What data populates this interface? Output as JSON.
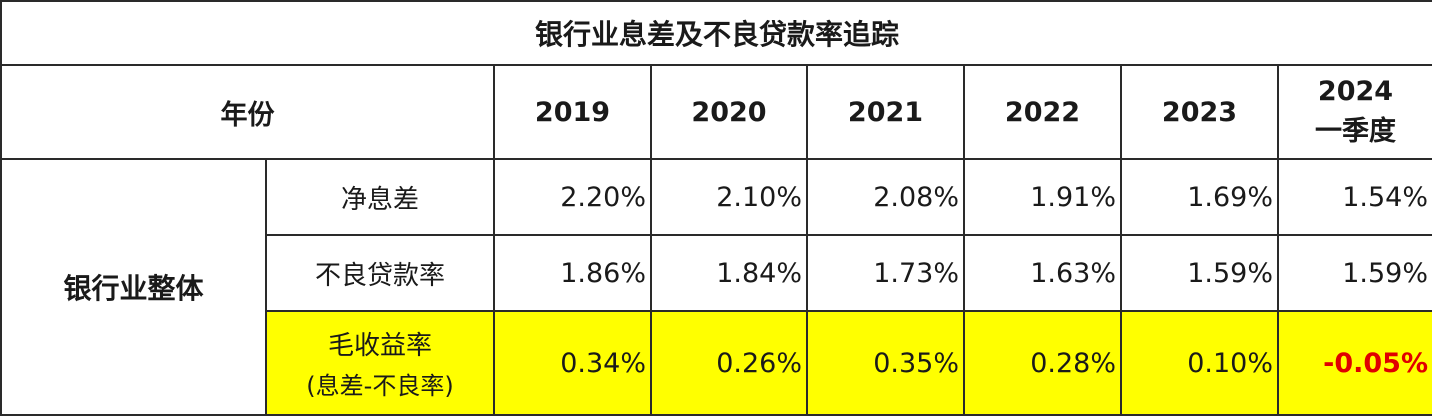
{
  "title": "银行业息差及不良贷款率追踪",
  "header": {
    "year_label": "年份",
    "years": [
      "2019",
      "2020",
      "2021",
      "2022",
      "2023"
    ],
    "last_year": "2024",
    "last_year_sub": "一季度"
  },
  "group_label": "银行业整体",
  "rows": [
    {
      "metric": "净息差",
      "values": [
        "2.20%",
        "2.10%",
        "2.08%",
        "1.91%",
        "1.69%",
        "1.54%"
      ]
    },
    {
      "metric": "不良贷款率",
      "values": [
        "1.86%",
        "1.84%",
        "1.73%",
        "1.63%",
        "1.59%",
        "1.59%"
      ]
    },
    {
      "metric": "毛收益率",
      "metric_sub": "(息差-不良率)",
      "values": [
        "0.34%",
        "0.26%",
        "0.35%",
        "0.28%",
        "0.10%",
        "-0.05%"
      ]
    }
  ],
  "colors": {
    "highlight_row": "#ffff00",
    "negative_value": "#e00000",
    "border": "#2a2a2a"
  }
}
